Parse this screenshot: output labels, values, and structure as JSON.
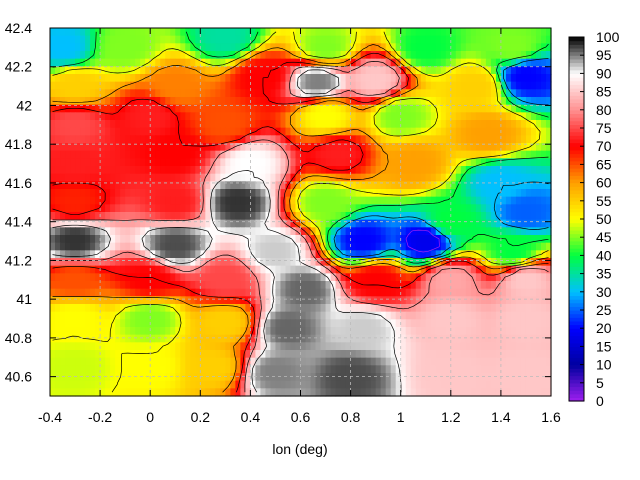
{
  "chart_data": {
    "type": "heatmap",
    "title": "",
    "xlabel": "lon (deg)",
    "ylabel": "",
    "xlim": [
      -0.4,
      1.6
    ],
    "ylim": [
      40.5,
      42.4
    ],
    "x_ticks": [
      "-0.4",
      "-0.2",
      "0",
      "0.2",
      "0.4",
      "0.6",
      "0.8",
      "1",
      "1.2",
      "1.4",
      "1.6"
    ],
    "x_tick_values": [
      -0.4,
      -0.2,
      0,
      0.2,
      0.4,
      0.6,
      0.8,
      1.0,
      1.2,
      1.4,
      1.6
    ],
    "y_ticks": [
      "40.6",
      "40.8",
      "41",
      "41.2",
      "41.4",
      "41.6",
      "41.8",
      "42",
      "42.2",
      "42.4"
    ],
    "y_tick_values": [
      40.6,
      40.8,
      41.0,
      41.2,
      41.4,
      41.6,
      41.8,
      42.0,
      42.2,
      42.4
    ],
    "grid": true,
    "contours": true,
    "colorbar": {
      "min": 0,
      "max": 100,
      "ticks": [
        "0",
        "5",
        "10",
        "15",
        "20",
        "25",
        "30",
        "35",
        "40",
        "45",
        "50",
        "55",
        "60",
        "65",
        "70",
        "75",
        "80",
        "85",
        "90",
        "95",
        "100"
      ],
      "tick_values": [
        0,
        5,
        10,
        15,
        20,
        25,
        30,
        35,
        40,
        45,
        50,
        55,
        60,
        65,
        70,
        75,
        80,
        85,
        90,
        95,
        100
      ],
      "colors": [
        "#a020f0",
        "#0000a0",
        "#0000ff",
        "#00c0ff",
        "#00ff40",
        "#ffff00",
        "#ffa000",
        "#ff0000",
        "#ff9090",
        "#ffffff",
        "#000000"
      ],
      "placement": "right"
    },
    "regions": [
      {
        "lon": -0.35,
        "lat": 42.3,
        "value": 30
      },
      {
        "lon": -0.1,
        "lat": 42.3,
        "value": 45
      },
      {
        "lon": 0.3,
        "lat": 42.35,
        "value": 35
      },
      {
        "lon": 0.7,
        "lat": 42.3,
        "value": 45
      },
      {
        "lon": 1.1,
        "lat": 42.3,
        "value": 40
      },
      {
        "lon": 1.45,
        "lat": 42.3,
        "value": 45
      },
      {
        "lon": -0.3,
        "lat": 42.1,
        "value": 55
      },
      {
        "lon": 0.1,
        "lat": 42.1,
        "value": 62
      },
      {
        "lon": 0.45,
        "lat": 42.15,
        "value": 70
      },
      {
        "lon": 0.67,
        "lat": 42.12,
        "value": 95
      },
      {
        "lon": 0.9,
        "lat": 42.13,
        "value": 85
      },
      {
        "lon": 1.3,
        "lat": 42.1,
        "value": 55
      },
      {
        "lon": 1.5,
        "lat": 42.15,
        "value": 20
      },
      {
        "lon": -0.3,
        "lat": 41.9,
        "value": 75
      },
      {
        "lon": 0.0,
        "lat": 41.95,
        "value": 72
      },
      {
        "lon": 0.3,
        "lat": 41.9,
        "value": 65
      },
      {
        "lon": 0.7,
        "lat": 41.95,
        "value": 50
      },
      {
        "lon": 1.0,
        "lat": 41.95,
        "value": 45
      },
      {
        "lon": 1.35,
        "lat": 41.85,
        "value": 60
      },
      {
        "lon": -0.3,
        "lat": 41.7,
        "value": 72
      },
      {
        "lon": 0.1,
        "lat": 41.75,
        "value": 70
      },
      {
        "lon": 0.4,
        "lat": 41.7,
        "value": 90
      },
      {
        "lon": 0.75,
        "lat": 41.75,
        "value": 72
      },
      {
        "lon": 1.05,
        "lat": 41.7,
        "value": 60
      },
      {
        "lon": 1.4,
        "lat": 41.6,
        "value": 30
      },
      {
        "lon": -0.3,
        "lat": 41.5,
        "value": 68
      },
      {
        "lon": 0.1,
        "lat": 41.5,
        "value": 72
      },
      {
        "lon": 0.35,
        "lat": 41.5,
        "value": 98
      },
      {
        "lon": 0.7,
        "lat": 41.5,
        "value": 45
      },
      {
        "lon": 1.2,
        "lat": 41.4,
        "value": 40
      },
      {
        "lon": 1.5,
        "lat": 41.45,
        "value": 25
      },
      {
        "lon": -0.3,
        "lat": 41.3,
        "value": 98
      },
      {
        "lon": 0.1,
        "lat": 41.28,
        "value": 97
      },
      {
        "lon": 0.5,
        "lat": 41.25,
        "value": 92
      },
      {
        "lon": 0.85,
        "lat": 41.3,
        "value": 20
      },
      {
        "lon": 1.1,
        "lat": 41.3,
        "value": 18
      },
      {
        "lon": 1.45,
        "lat": 41.25,
        "value": 40
      },
      {
        "lon": -0.3,
        "lat": 41.1,
        "value": 65
      },
      {
        "lon": 0.0,
        "lat": 41.1,
        "value": 70
      },
      {
        "lon": 0.3,
        "lat": 41.1,
        "value": 75
      },
      {
        "lon": 0.62,
        "lat": 41.05,
        "value": 96
      },
      {
        "lon": 0.9,
        "lat": 41.1,
        "value": 70
      },
      {
        "lon": 1.2,
        "lat": 41.1,
        "value": 82
      },
      {
        "lon": 1.5,
        "lat": 41.1,
        "value": 85
      },
      {
        "lon": -0.3,
        "lat": 40.9,
        "value": 50
      },
      {
        "lon": 0.0,
        "lat": 40.9,
        "value": 45
      },
      {
        "lon": 0.3,
        "lat": 40.88,
        "value": 55
      },
      {
        "lon": 0.55,
        "lat": 40.85,
        "value": 96
      },
      {
        "lon": 0.85,
        "lat": 40.85,
        "value": 92
      },
      {
        "lon": 1.2,
        "lat": 40.9,
        "value": 85
      },
      {
        "lon": 1.5,
        "lat": 40.9,
        "value": 85
      },
      {
        "lon": -0.3,
        "lat": 40.65,
        "value": 48
      },
      {
        "lon": 0.0,
        "lat": 40.65,
        "value": 50
      },
      {
        "lon": 0.25,
        "lat": 40.65,
        "value": 55
      },
      {
        "lon": 0.5,
        "lat": 40.62,
        "value": 95
      },
      {
        "lon": 0.8,
        "lat": 40.6,
        "value": 97
      },
      {
        "lon": 1.2,
        "lat": 40.62,
        "value": 85
      },
      {
        "lon": 1.5,
        "lat": 40.62,
        "value": 85
      }
    ]
  }
}
